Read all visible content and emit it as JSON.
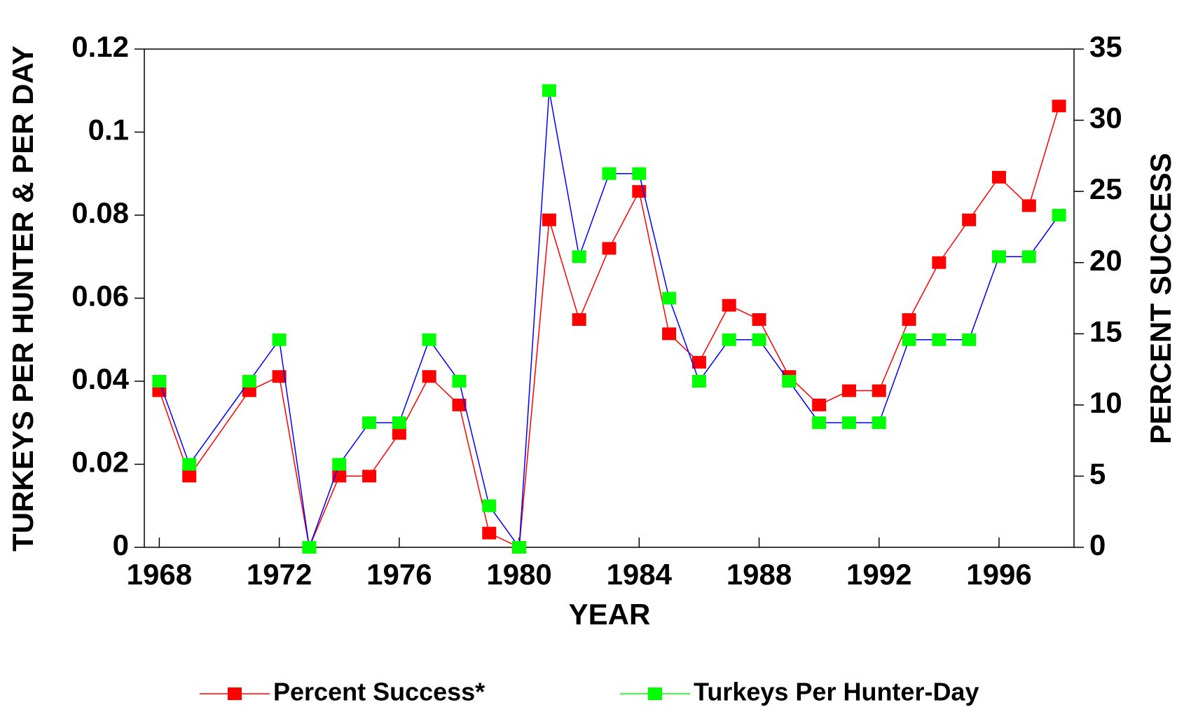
{
  "chart_data": {
    "type": "line",
    "x_label": "YEAR",
    "y_label": "TURKEYS PER HUNTER & PER DAY",
    "y2_label": "PERCENT SUCCESS",
    "x": [
      1968,
      1969,
      1971,
      1972,
      1973,
      1974,
      1975,
      1976,
      1977,
      1978,
      1979,
      1980,
      1981,
      1982,
      1983,
      1984,
      1985,
      1986,
      1987,
      1988,
      1989,
      1990,
      1991,
      1992,
      1993,
      1994,
      1995,
      1996,
      1997,
      1998
    ],
    "series": [
      {
        "name": "Percent Success*",
        "color": "#ff0000",
        "line_color": "#ff0000",
        "axis": "y2",
        "values": [
          11,
          5,
          11,
          12,
          0,
          5,
          5,
          8,
          12,
          10,
          1,
          0,
          23,
          16,
          21,
          25,
          15,
          13,
          17,
          16,
          12,
          10,
          11,
          11,
          16,
          20,
          23,
          26,
          24,
          31
        ]
      },
      {
        "name": "Turkeys Per Hunter-Day",
        "color": "#00ff00",
        "line_color": "#0000ff",
        "values": [
          0.04,
          0.02,
          0.04,
          0.05,
          0,
          0.02,
          0.03,
          0.03,
          0.05,
          0.04,
          0.01,
          0,
          0.11,
          0.07,
          0.09,
          0.09,
          0.06,
          0.04,
          0.05,
          0.05,
          0.04,
          0.03,
          0.03,
          0.03,
          0.05,
          0.05,
          0.05,
          0.07,
          0.07,
          0.08
        ]
      }
    ],
    "xlim": [
      1967.5,
      1998.5
    ],
    "xticks": [
      1968,
      1972,
      1976,
      1980,
      1984,
      1988,
      1992,
      1996
    ],
    "ylim": [
      0,
      0.12
    ],
    "yticks": [
      0,
      0.02,
      0.04,
      0.06,
      0.08,
      0.1,
      0.12
    ],
    "y2lim": [
      0,
      35
    ],
    "y2ticks": [
      0,
      5,
      10,
      15,
      20,
      25,
      30,
      35
    ],
    "legend": "bottom",
    "grid": false
  }
}
